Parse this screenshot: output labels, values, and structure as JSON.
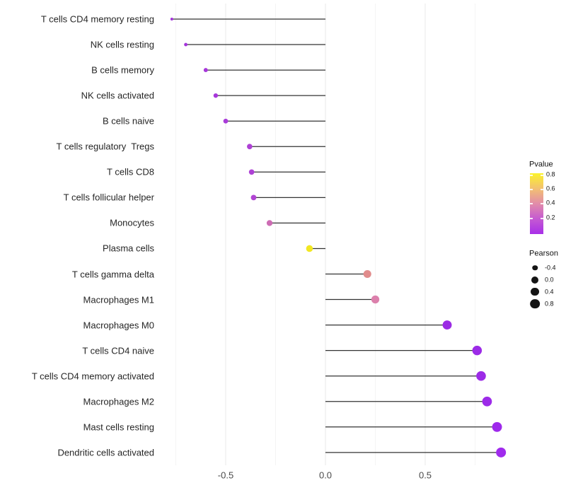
{
  "chart_data": {
    "type": "scatter",
    "variant": "lollipop",
    "orientation": "horizontal",
    "title": "",
    "xlabel": "",
    "ylabel": "",
    "background": "#FFFFFF",
    "grid": "vertical-only",
    "x_axis": {
      "tick_labels": [
        "-0.5",
        "0.0",
        "0.5"
      ],
      "tick_values": [
        -0.5,
        0.0,
        0.5
      ],
      "minor_tick_values": [
        -0.75,
        -0.25,
        0.25,
        0.75
      ],
      "range": [
        -0.85,
        0.96
      ]
    },
    "segment_color": "#333333",
    "points": [
      {
        "label": "T cells CD4 memory resting",
        "pearson": -0.77,
        "color": "#A434DB"
      },
      {
        "label": "NK cells resting",
        "pearson": -0.7,
        "color": "#A434DB"
      },
      {
        "label": "B cells memory",
        "pearson": -0.6,
        "color": "#A737DA"
      },
      {
        "label": "NK cells activated",
        "pearson": -0.55,
        "color": "#A737DA"
      },
      {
        "label": "B cells naive",
        "pearson": -0.5,
        "color": "#A93BD9"
      },
      {
        "label": "T cells regulatory  Tregs",
        "pearson": -0.38,
        "color": "#AE41D5"
      },
      {
        "label": "T cells CD8",
        "pearson": -0.37,
        "color": "#AE41D5"
      },
      {
        "label": "T cells follicular helper",
        "pearson": -0.36,
        "color": "#B145D3"
      },
      {
        "label": "Monocytes",
        "pearson": -0.28,
        "color": "#CD6CB4"
      },
      {
        "label": "Plasma cells",
        "pearson": -0.08,
        "color": "#F2E722"
      },
      {
        "label": "T cells gamma delta",
        "pearson": 0.21,
        "color": "#E18C8C"
      },
      {
        "label": "Macrophages M1",
        "pearson": 0.25,
        "color": "#DC80AC"
      },
      {
        "label": "Macrophages M0",
        "pearson": 0.61,
        "color": "#9B2BE4"
      },
      {
        "label": "T cells CD4 naive",
        "pearson": 0.76,
        "color": "#9C2BE7"
      },
      {
        "label": "T cells CD4 memory activated",
        "pearson": 0.78,
        "color": "#9C2BE7"
      },
      {
        "label": "Macrophages M2",
        "pearson": 0.81,
        "color": "#9D2BE9"
      },
      {
        "label": "Mast cells resting",
        "pearson": 0.86,
        "color": "#9E29EB"
      },
      {
        "label": "Dendritic cells activated",
        "pearson": 0.88,
        "color": "#A02BED"
      }
    ],
    "legends": {
      "pvalue": {
        "title": "Pvalue",
        "tick_labels_top_to_bottom": [
          "0.8",
          "0.6",
          "0.4",
          "0.2"
        ],
        "gradient_bottom_to_top": [
          "#A82FE8",
          "#C55AD2",
          "#E28CA9",
          "#F3C171",
          "#FBF22A"
        ]
      },
      "pearson": {
        "title": "Pearson",
        "entries": [
          {
            "label": "-0.4",
            "value": -0.4
          },
          {
            "label": "0.0",
            "value": 0.0
          },
          {
            "label": "0.4",
            "value": 0.4
          },
          {
            "label": "0.8",
            "value": 0.8
          }
        ]
      }
    }
  }
}
